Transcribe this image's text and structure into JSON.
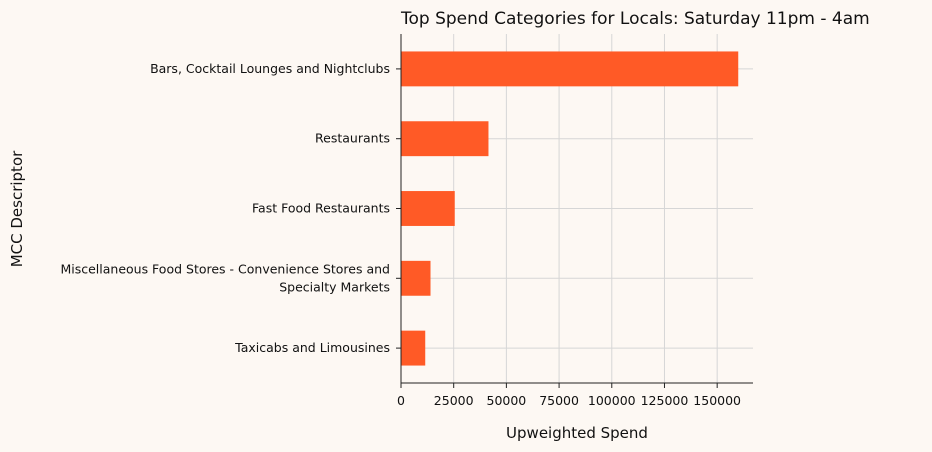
{
  "chart_data": {
    "type": "bar",
    "orientation": "horizontal",
    "title": "Top Spend Categories for Locals: Saturday 11pm - 4am",
    "xlabel": "Upweighted Spend",
    "ylabel": "MCC Descriptor",
    "categories": [
      [
        "Bars, Cocktail Lounges and Nightclubs"
      ],
      [
        "Restaurants"
      ],
      [
        "Fast Food Restaurants"
      ],
      [
        "Miscellaneous Food Stores - Convenience Stores and",
        "Specialty Markets"
      ],
      [
        "Taxicabs and Limousines"
      ]
    ],
    "values": [
      160000,
      41500,
      25500,
      14000,
      11500
    ],
    "xlim": [
      0,
      167000
    ],
    "xticks": [
      0,
      25000,
      50000,
      75000,
      100000,
      125000,
      150000
    ],
    "xtick_labels": [
      "0",
      "25000",
      "50000",
      "75000",
      "100000",
      "125000",
      "150000"
    ],
    "grid": true,
    "colors": {
      "bar": "#ff5a26",
      "grid": "#d6d6d6",
      "background": "#fdf8f3",
      "text": "#111111"
    }
  }
}
